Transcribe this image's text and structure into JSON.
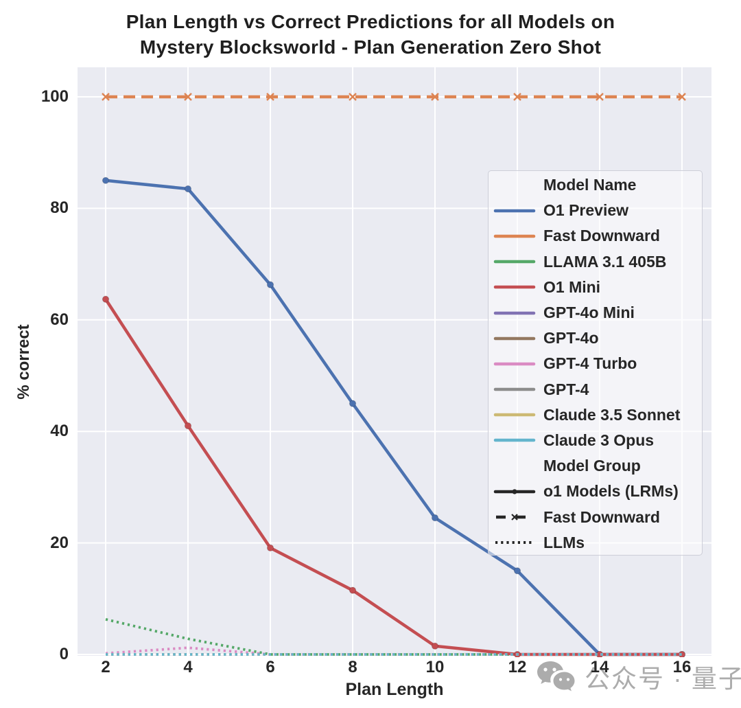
{
  "figure": {
    "title_line1": "Plan Length vs Correct Predictions for all Models on",
    "title_line2": "Mystery Blocksworld - Plan Generation Zero Shot"
  },
  "chart_data": {
    "type": "line",
    "title": "Plan Length vs Correct Predictions for all Models on Mystery Blocksworld - Plan Generation Zero Shot",
    "xlabel": "Plan Length",
    "ylabel": "% correct",
    "x": [
      2,
      4,
      6,
      8,
      10,
      12,
      14,
      16
    ],
    "x_ticks": [
      2,
      4,
      6,
      8,
      10,
      12,
      14,
      16
    ],
    "y_ticks": [
      0,
      20,
      40,
      60,
      80,
      100
    ],
    "xlim": [
      1.32,
      16.72
    ],
    "ylim": [
      0,
      105.3
    ],
    "grid": true,
    "legend_position": "upper right",
    "series": [
      {
        "name": "O1 Preview",
        "color": "#4c72b0",
        "style": "solid",
        "marker": "circle",
        "group": "o1 Models (LRMs)",
        "values": [
          85,
          83.5,
          66.3,
          45,
          24.5,
          15,
          0,
          0
        ]
      },
      {
        "name": "Fast Downward",
        "color": "#dd8452",
        "style": "dashed",
        "marker": "x",
        "group": "Fast Downward",
        "values": [
          100,
          100,
          100,
          100,
          100,
          100,
          100,
          100
        ]
      },
      {
        "name": "LLAMA 3.1 405B",
        "color": "#55a868",
        "style": "dotted",
        "marker": "none",
        "group": "LLMs",
        "values": [
          6.3,
          2.8,
          0,
          0,
          0,
          0,
          0,
          0
        ]
      },
      {
        "name": "O1 Mini",
        "color": "#c44e52",
        "style": "solid",
        "marker": "circle",
        "group": "o1 Models (LRMs)",
        "values": [
          63.7,
          41,
          19.1,
          11.5,
          1.5,
          0,
          0,
          0
        ]
      },
      {
        "name": "GPT-4o Mini",
        "color": "#8172b3",
        "style": "dotted",
        "marker": "none",
        "group": "LLMs",
        "values": [
          0,
          0,
          0,
          0,
          0,
          0,
          0,
          0
        ]
      },
      {
        "name": "GPT-4o",
        "color": "#937860",
        "style": "dotted",
        "marker": "none",
        "group": "LLMs",
        "values": [
          0,
          0,
          0,
          0,
          0,
          0,
          0,
          0
        ]
      },
      {
        "name": "GPT-4 Turbo",
        "color": "#da8bc3",
        "style": "dotted",
        "marker": "none",
        "group": "LLMs",
        "values": [
          0.2,
          1.2,
          0,
          0,
          0,
          0,
          0,
          0
        ]
      },
      {
        "name": "GPT-4",
        "color": "#8c8c8c",
        "style": "dotted",
        "marker": "none",
        "group": "LLMs",
        "values": [
          0,
          0,
          0,
          0,
          0,
          0,
          0,
          0
        ]
      },
      {
        "name": "Claude 3.5 Sonnet",
        "color": "#ccb974",
        "style": "dotted",
        "marker": "none",
        "group": "LLMs",
        "values": [
          0,
          0,
          0,
          0,
          0,
          0,
          0,
          0
        ]
      },
      {
        "name": "Claude 3 Opus",
        "color": "#64b5cd",
        "style": "dotted",
        "marker": "none",
        "group": "LLMs",
        "values": [
          0,
          0,
          0,
          0,
          0,
          0,
          0,
          0
        ]
      }
    ]
  },
  "legend": {
    "title_models": "Model Name",
    "title_groups": "Model Group",
    "group_entries": [
      {
        "label": "o1 Models (LRMs)",
        "style": "solid-dot"
      },
      {
        "label": "Fast Downward",
        "style": "dashed-x"
      },
      {
        "label": "LLMs",
        "style": "dotted"
      }
    ]
  },
  "watermark": {
    "icon": "wechat-icon",
    "text": "公众号 · 量子位"
  },
  "colors": {
    "plot_bg": "#eaebf2",
    "grid": "#ffffff",
    "text": "#262626",
    "legend_border": "#cdced8",
    "legend_sample": "#262626",
    "watermark": "#9b9b9b"
  }
}
